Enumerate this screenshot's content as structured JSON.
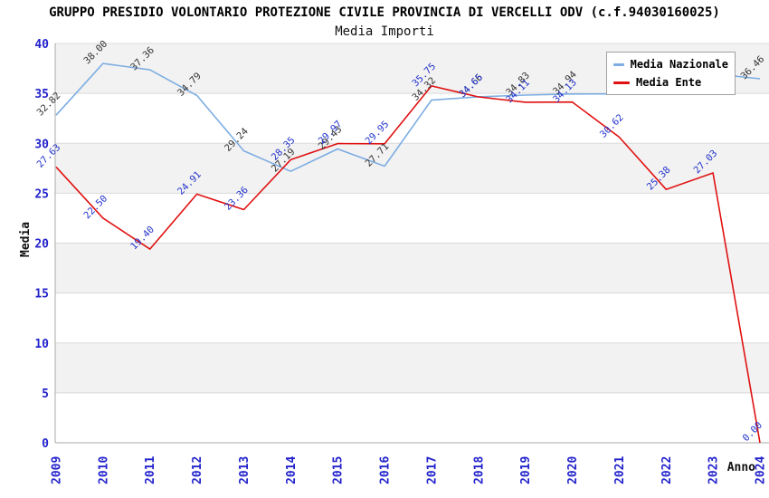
{
  "chart_data": {
    "type": "line",
    "title": "GRUPPO PRESIDIO VOLONTARIO PROTEZIONE CIVILE PROVINCIA DI VERCELLI ODV (c.f.94030160025)",
    "subtitle": "Media Importi",
    "xlabel": "Anno",
    "ylabel": "Media",
    "ylim": [
      0,
      40
    ],
    "ytick_step": 5,
    "ytick_labels": [
      "0",
      "5",
      "10",
      "15",
      "20",
      "25",
      "30",
      "35",
      "40"
    ],
    "x": [
      2009,
      2010,
      2011,
      2012,
      2013,
      2014,
      2015,
      2016,
      2017,
      2018,
      2019,
      2020,
      2021,
      2022,
      2023,
      2024
    ],
    "series": [
      {
        "name": "Media Nazionale",
        "color": "#7dade2",
        "label_color": "#333333",
        "values": [
          32.82,
          38.0,
          37.36,
          34.79,
          29.24,
          27.19,
          29.43,
          27.71,
          34.32,
          34.66,
          34.83,
          34.94,
          34.95,
          35.0,
          36.95,
          36.46
        ],
        "labels": [
          "32.82",
          "38.00",
          "37.36",
          "34.79",
          "29.24",
          "27.19",
          "29.43",
          "27.71",
          "34.32",
          "34.66",
          "34.83",
          "34.94",
          null,
          null,
          null,
          "36.46"
        ]
      },
      {
        "name": "Media Ente",
        "color": "#e01111",
        "label_color": "#2233cc",
        "values": [
          27.63,
          22.5,
          19.4,
          24.91,
          23.36,
          28.35,
          29.97,
          29.95,
          35.75,
          34.65,
          34.11,
          34.13,
          30.62,
          25.38,
          27.03,
          0.0
        ],
        "labels": [
          "27.63",
          "22.50",
          "19.40",
          "24.91",
          "23.36",
          "28.35",
          "29.97",
          "29.95",
          "35.75",
          "34.65",
          "34.11",
          "34.13",
          "30.62",
          "25.38",
          "27.03",
          "0.00"
        ]
      }
    ],
    "labels_hidden_by_legend": [
      2021,
      2022,
      2023
    ],
    "legend_position": "top-right",
    "grid": "horizontal-bands",
    "band_fill": "#f2f2f2",
    "gridline_color": "#d9d9d9",
    "axis_line_color": "#aaaaaa",
    "tick_label_color": "#2222cc"
  }
}
